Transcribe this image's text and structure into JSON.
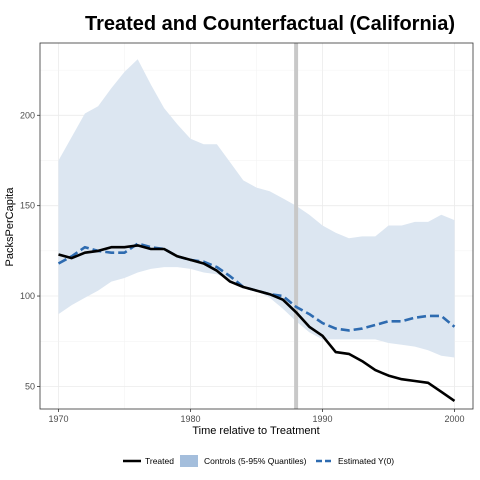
{
  "chart_data": {
    "type": "line",
    "title": "Treated and Counterfactual (California)",
    "xlabel": "Time relative to Treatment",
    "ylabel": "PacksPerCapita",
    "xlim": [
      1968.6,
      2001.4
    ],
    "ylim": [
      37.5,
      240
    ],
    "x_ticks": [
      1970,
      1980,
      1990,
      2000
    ],
    "y_ticks": [
      50,
      100,
      150,
      200
    ],
    "grid": true,
    "legend_position": "bottom",
    "treatment_time": 1988,
    "colors": {
      "treated": "#000000",
      "band": "#dce6f1",
      "estimated": "#2e6bb0",
      "treatment_line": "#c8c8c8",
      "legend_band": "#a4bedc"
    },
    "legend": [
      {
        "key": "treated",
        "label": "Treated"
      },
      {
        "key": "band",
        "label": "Controls (5-95% Quantiles)"
      },
      {
        "key": "estimated",
        "label": "Estimated Y(0)"
      }
    ],
    "x": [
      1970,
      1971,
      1972,
      1973,
      1974,
      1975,
      1976,
      1977,
      1978,
      1979,
      1980,
      1981,
      1982,
      1983,
      1984,
      1985,
      1986,
      1987,
      1988,
      1989,
      1990,
      1991,
      1992,
      1993,
      1994,
      1995,
      1996,
      1997,
      1998,
      1999,
      2000
    ],
    "series": [
      {
        "name": "Treated",
        "key": "treated",
        "style": "solid",
        "values": [
          123,
          121,
          124,
          125,
          127,
          127,
          128,
          126,
          126,
          122,
          120,
          118,
          114,
          108,
          105,
          103,
          101,
          98,
          91,
          83,
          78,
          69,
          68,
          64,
          59,
          56,
          54,
          53,
          52,
          47,
          42
        ]
      },
      {
        "name": "Estimated Y(0)",
        "key": "estimated",
        "style": "dashed",
        "values": [
          118,
          122,
          127,
          125,
          124,
          124,
          129,
          127,
          126,
          122,
          120,
          119,
          116,
          111,
          105,
          103,
          101,
          100,
          94,
          90,
          85,
          82,
          81,
          82,
          84,
          86,
          86,
          88,
          89,
          89,
          83
        ]
      }
    ],
    "band": {
      "name": "Controls (5-95% Quantiles)",
      "lower": [
        90,
        95,
        99,
        103,
        108,
        110,
        113,
        115,
        116,
        116,
        115,
        113,
        112,
        109,
        106,
        103,
        99,
        93,
        86,
        80,
        76,
        76,
        76,
        76,
        76,
        74,
        73,
        72,
        70,
        67,
        66
      ],
      "upper": [
        175,
        188,
        201,
        205,
        215,
        224,
        231,
        217,
        204,
        195,
        187,
        184,
        184,
        174,
        164,
        160,
        158,
        154,
        150,
        145,
        139,
        135,
        132,
        133,
        133,
        139,
        139,
        141,
        141,
        145,
        142
      ]
    }
  }
}
